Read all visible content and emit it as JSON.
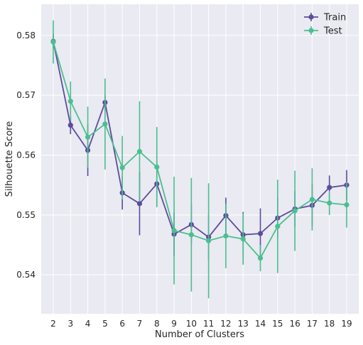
{
  "chart_data": {
    "type": "line",
    "xlabel": "Number of Clusters",
    "ylabel": "Silhouette Score",
    "x": [
      2,
      3,
      4,
      5,
      6,
      7,
      8,
      9,
      10,
      11,
      12,
      13,
      14,
      15,
      16,
      17,
      18,
      19
    ],
    "xlim": [
      1.3,
      19.7
    ],
    "ylim": [
      0.5335,
      0.5852
    ],
    "yticks": [
      0.54,
      0.55,
      0.56,
      0.57,
      0.58
    ],
    "ytick_labels": [
      "0.54",
      "0.55",
      "0.56",
      "0.57",
      "0.58"
    ],
    "grid": true,
    "legend": "top-right",
    "background": "#eaeaf2",
    "series": [
      {
        "name": "Train",
        "color": "#5e4b9c",
        "values": [
          0.579,
          0.565,
          0.5608,
          0.5688,
          0.5537,
          0.5519,
          0.5552,
          0.5468,
          0.5484,
          0.5463,
          0.5499,
          0.5467,
          0.5469,
          0.5495,
          0.551,
          0.5516,
          0.5546,
          0.555
        ],
        "errors": [
          0.0012,
          0.0015,
          0.0043,
          0.0012,
          0.0028,
          0.0053,
          0.0038,
          0.0036,
          0.0033,
          0.0038,
          0.003,
          0.0038,
          0.0042,
          0.0034,
          0.003,
          0.0035,
          0.002,
          0.0025
        ]
      },
      {
        "name": "Test",
        "color": "#4bbf8f",
        "values": [
          0.5789,
          0.569,
          0.563,
          0.5652,
          0.5579,
          0.5606,
          0.558,
          0.5474,
          0.5467,
          0.5457,
          0.5465,
          0.546,
          0.5428,
          0.5481,
          0.5507,
          0.5526,
          0.552,
          0.5517
        ],
        "errors": [
          0.0036,
          0.0033,
          0.0051,
          0.0076,
          0.0053,
          0.0084,
          0.0067,
          0.009,
          0.0095,
          0.0096,
          0.0054,
          0.0043,
          0.0022,
          0.0078,
          0.0067,
          0.0052,
          0.002,
          0.0038
        ]
      }
    ]
  }
}
